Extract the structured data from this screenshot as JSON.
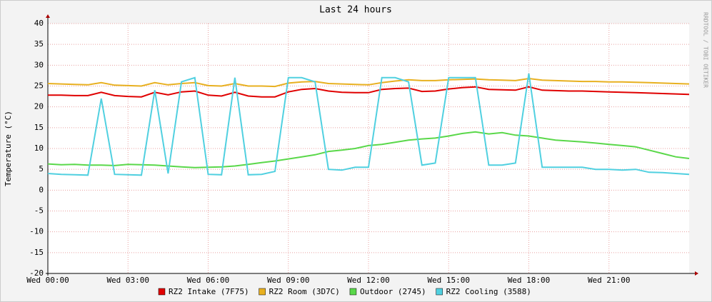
{
  "chart_data": {
    "type": "line",
    "title": "Last 24 hours",
    "y_label": "Temperature (°C)",
    "side_text": "RRDTOOL / TOBI OETIKER",
    "x": [
      0,
      0.5,
      1,
      1.5,
      2,
      2.5,
      3,
      3.5,
      4,
      4.5,
      5,
      5.5,
      6,
      6.5,
      7,
      7.5,
      8,
      8.5,
      9,
      9.5,
      10,
      10.5,
      11,
      11.5,
      12,
      12.5,
      13,
      13.5,
      14,
      14.5,
      15,
      15.5,
      16,
      16.5,
      17,
      17.5,
      18,
      18.5,
      19,
      19.5,
      20,
      20.5,
      21,
      21.5,
      22,
      22.5,
      23,
      23.5,
      24
    ],
    "xlim": [
      0,
      24
    ],
    "xticks": [
      {
        "value": 0,
        "label": "Wed 00:00"
      },
      {
        "value": 3,
        "label": "Wed 03:00"
      },
      {
        "value": 6,
        "label": "Wed 06:00"
      },
      {
        "value": 9,
        "label": "Wed 09:00"
      },
      {
        "value": 12,
        "label": "Wed 12:00"
      },
      {
        "value": 15,
        "label": "Wed 15:00"
      },
      {
        "value": 18,
        "label": "Wed 18:00"
      },
      {
        "value": 21,
        "label": "Wed 21:00"
      }
    ],
    "ylim": [
      -20,
      40
    ],
    "yticks": [
      -20,
      -15,
      -10,
      -5,
      0,
      5,
      10,
      15,
      20,
      25,
      30,
      35,
      40
    ],
    "grid": true,
    "series": [
      {
        "name": "RZ2 Intake (7F75)",
        "color": "#e00000",
        "values": [
          22.8,
          22.8,
          22.7,
          22.7,
          23.5,
          22.7,
          22.5,
          22.4,
          23.5,
          22.9,
          23.6,
          23.8,
          22.8,
          22.6,
          23.5,
          22.6,
          22.4,
          22.4,
          23.6,
          24.2,
          24.4,
          23.8,
          23.5,
          23.4,
          23.4,
          24.2,
          24.4,
          24.5,
          23.7,
          23.8,
          24.3,
          24.6,
          24.8,
          24.2,
          24.1,
          24,
          24.8,
          24,
          23.9,
          23.8,
          23.8,
          23.7,
          23.6,
          23.5,
          23.4,
          23.3,
          23.2,
          23.1,
          23
        ]
      },
      {
        "name": "RZ2 Room (3D7C)",
        "color": "#e8b020",
        "values": [
          25.6,
          25.5,
          25.4,
          25.3,
          25.8,
          25.2,
          25.1,
          25,
          25.8,
          25.3,
          25.6,
          25.8,
          25.1,
          25,
          25.6,
          25,
          25,
          24.9,
          25.7,
          26,
          26.1,
          25.6,
          25.5,
          25.4,
          25.3,
          25.8,
          26.2,
          26.5,
          26.3,
          26.3,
          26.5,
          26.6,
          26.7,
          26.5,
          26.4,
          26.3,
          26.8,
          26.4,
          26.3,
          26.2,
          26.1,
          26.1,
          26,
          26,
          25.9,
          25.8,
          25.7,
          25.6,
          25.5
        ]
      },
      {
        "name": "Outdoor (2745)",
        "color": "#5ad84a",
        "values": [
          6.3,
          6.1,
          6.2,
          6,
          6,
          5.9,
          6.2,
          6.1,
          6,
          5.8,
          5.6,
          5.4,
          5.5,
          5.6,
          5.8,
          6.2,
          6.6,
          7,
          7.5,
          8,
          8.5,
          9.3,
          9.6,
          10,
          10.7,
          11,
          11.5,
          12,
          12.3,
          12.5,
          13,
          13.6,
          14,
          13.5,
          13.8,
          13.2,
          13,
          12.5,
          12,
          11.8,
          11.6,
          11.3,
          11,
          10.7,
          10.4,
          9.6,
          8.8,
          8,
          7.6
        ]
      },
      {
        "name": "RZ2 Cooling (3588)",
        "color": "#50d0e0",
        "values": [
          4,
          3.8,
          3.7,
          3.6,
          22,
          3.8,
          3.7,
          3.6,
          24,
          4,
          26,
          27,
          3.8,
          3.7,
          27,
          3.7,
          3.8,
          4.5,
          27,
          27,
          26,
          5,
          4.8,
          5.5,
          5.5,
          27,
          27,
          26,
          6,
          6.5,
          27,
          27,
          27,
          6,
          6,
          6.5,
          28,
          5.5,
          5.5,
          5.5,
          5.5,
          5,
          5,
          4.8,
          5,
          4.3,
          4.2,
          4,
          3.8
        ]
      }
    ]
  }
}
